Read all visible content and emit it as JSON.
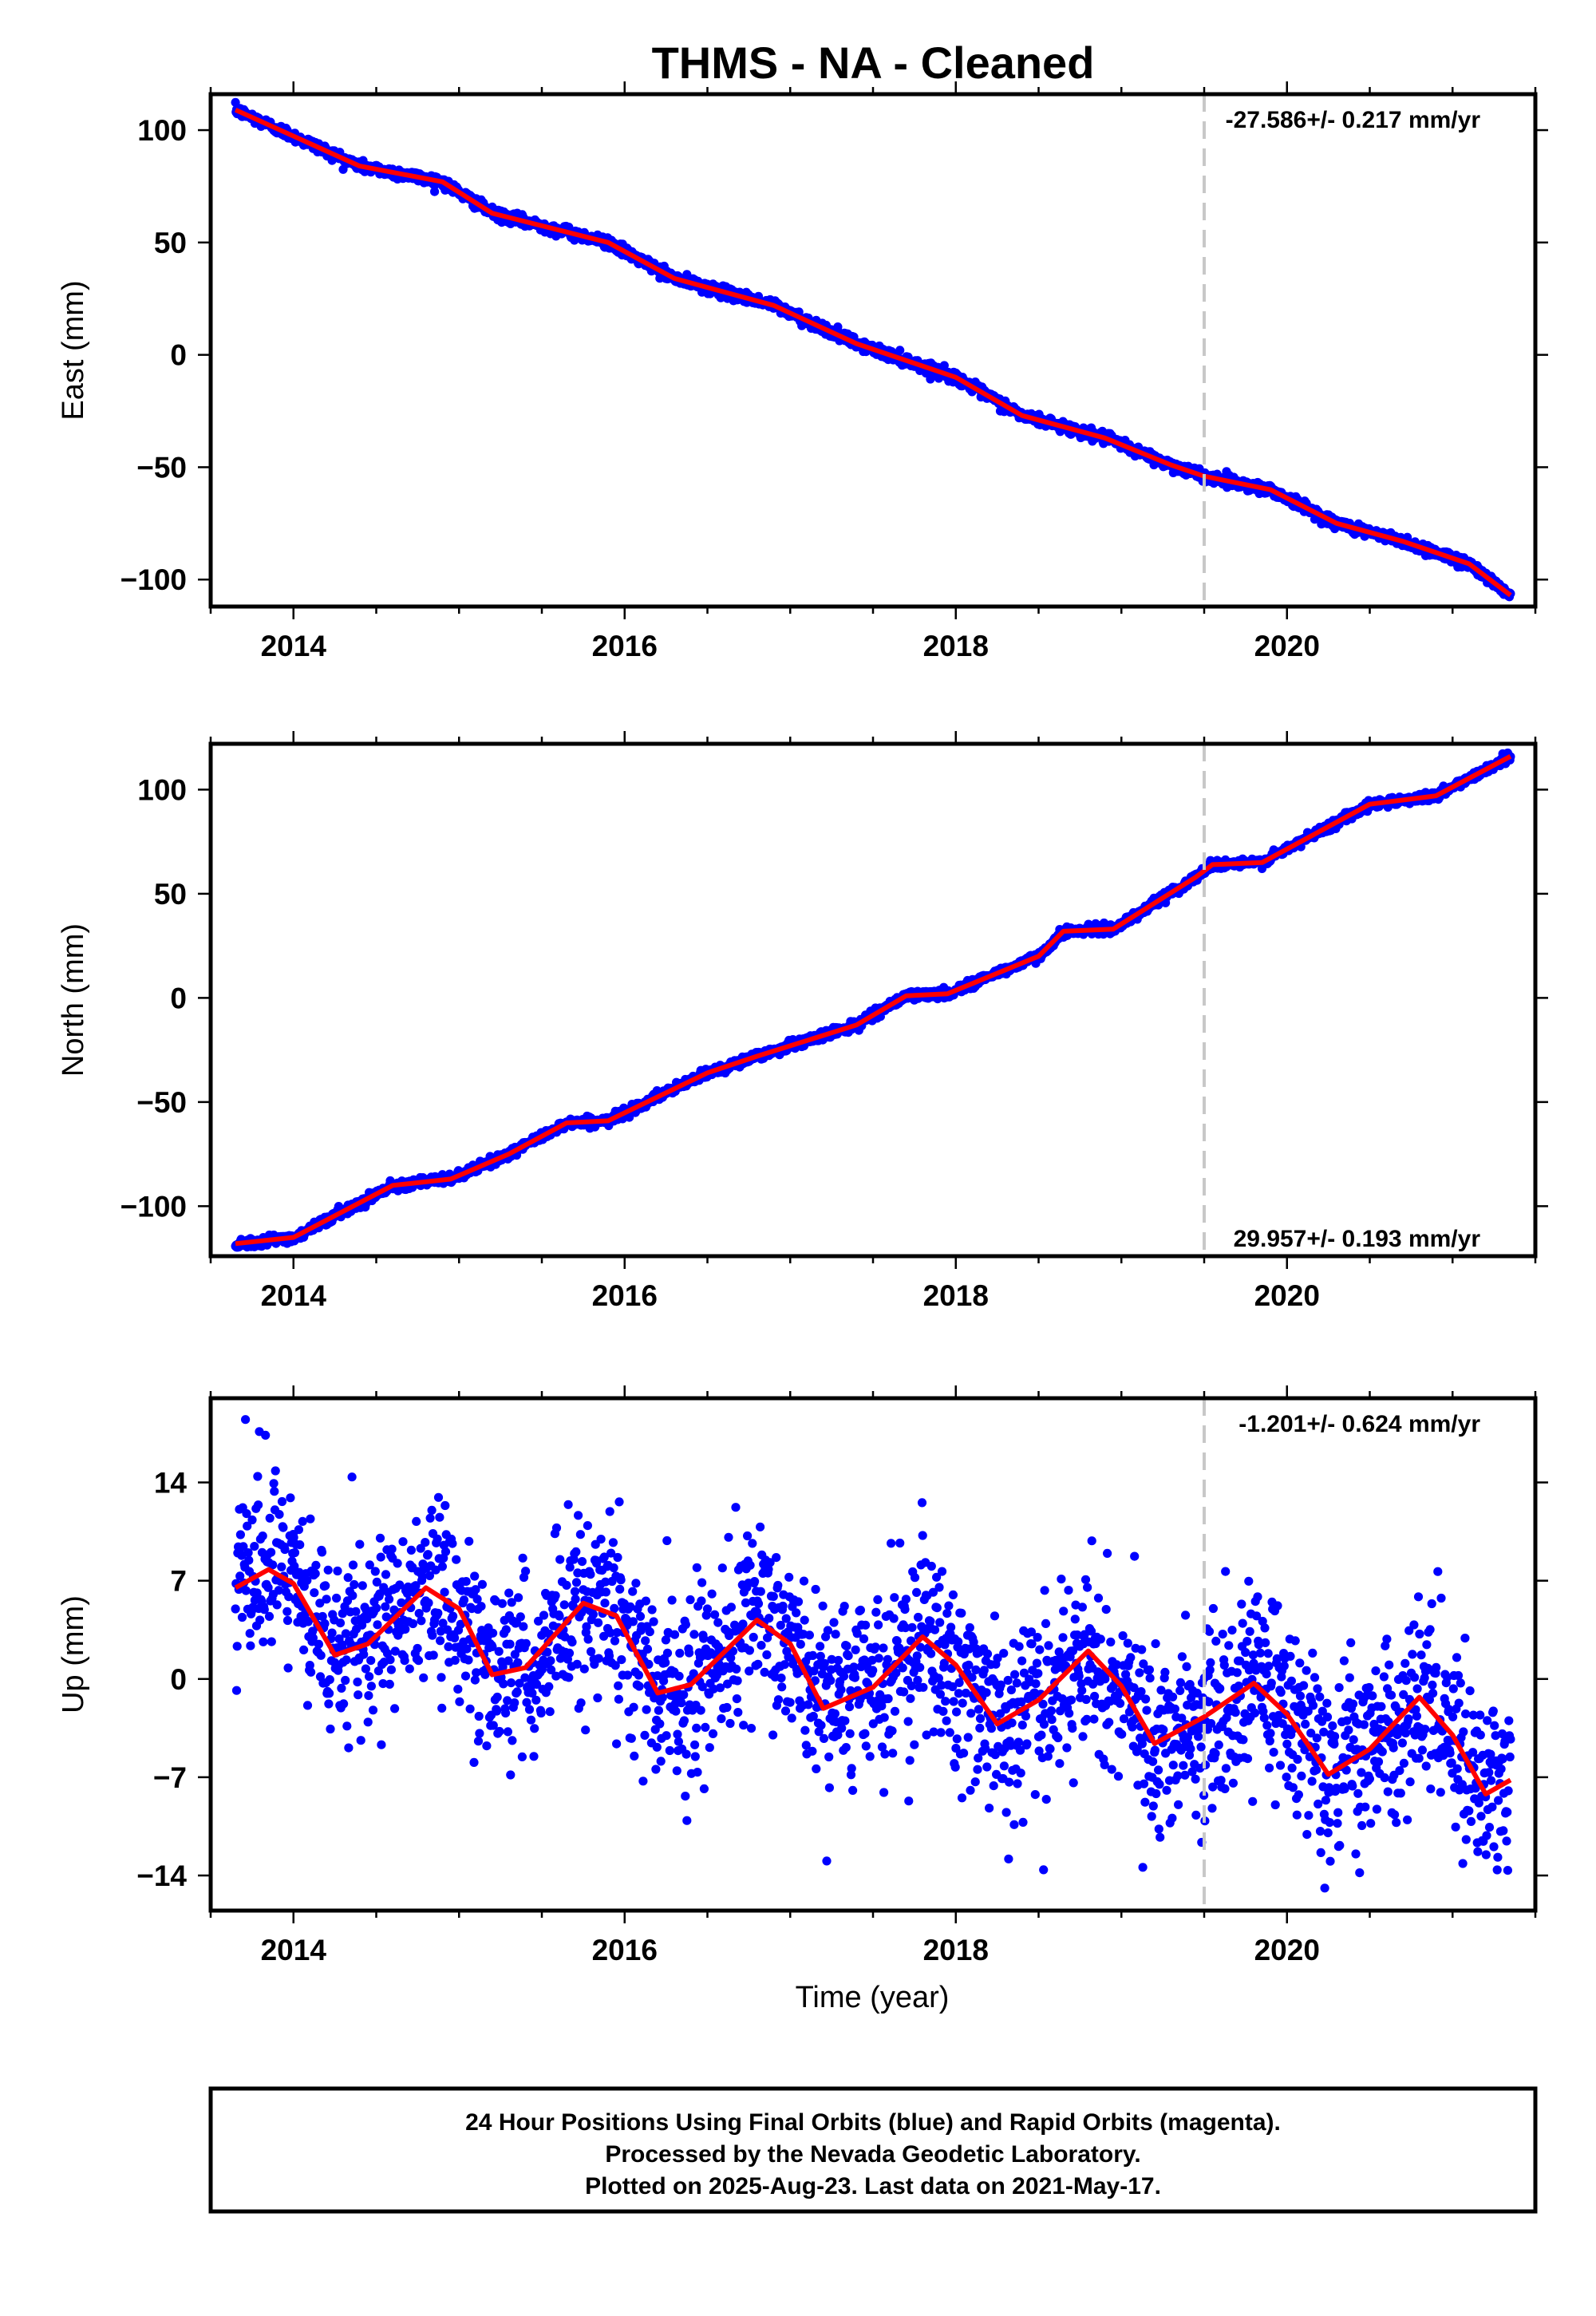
{
  "title": "THMS  - NA - Cleaned",
  "xlabel": "Time (year)",
  "colors": {
    "points": "#0000ff",
    "fit": "#ff0000",
    "break_line": "#c8c8c8",
    "frame": "#000000"
  },
  "footer": {
    "line1": "24 Hour Positions Using Final Orbits (blue) and Rapid Orbits (magenta).",
    "line2": "Processed by the Nevada Geodetic Laboratory.",
    "line3": "Plotted on 2025-Aug-23. Last data on 2021-May-17."
  },
  "chart_data": [
    {
      "type": "scatter",
      "ylabel": "East (mm)",
      "rate_label": "-27.586+/- 0.217 mm/yr",
      "xlim": [
        2013.5,
        2021.5
      ],
      "ylim": [
        -112,
        116
      ],
      "xticks": [
        2014,
        2016,
        2018,
        2020
      ],
      "xtick_labels": [
        "2014",
        "2016",
        "2018",
        "2020"
      ],
      "yticks": [
        100,
        50,
        0,
        -50,
        -100
      ],
      "ytick_labels": [
        "100",
        "50",
        "0",
        "−50",
        "−100"
      ],
      "break_x": 2019.5,
      "trend": {
        "x0": 2013.65,
        "y0": 109,
        "slope": -27.586
      },
      "seasonal": {
        "amplitude": 2.0,
        "phase": 0.3,
        "noise": 1.2
      },
      "fit_points": [
        [
          2013.65,
          109
        ],
        [
          2014.4,
          84
        ],
        [
          2014.9,
          77
        ],
        [
          2015.2,
          63
        ],
        [
          2015.9,
          50
        ],
        [
          2016.3,
          34
        ],
        [
          2016.9,
          22
        ],
        [
          2017.4,
          5
        ],
        [
          2018.0,
          -10
        ],
        [
          2018.4,
          -27
        ],
        [
          2018.9,
          -37
        ],
        [
          2019.3,
          -49
        ],
        [
          2019.5,
          -54
        ],
        [
          2019.9,
          -60
        ],
        [
          2020.3,
          -75
        ],
        [
          2020.7,
          -83
        ],
        [
          2021.1,
          -93
        ],
        [
          2021.35,
          -107
        ]
      ]
    },
    {
      "type": "scatter",
      "ylabel": "North (mm)",
      "rate_label": "29.957+/- 0.193 mm/yr",
      "xlim": [
        2013.5,
        2021.5
      ],
      "ylim": [
        -124,
        122
      ],
      "xticks": [
        2014,
        2016,
        2018,
        2020
      ],
      "xtick_labels": [
        "2014",
        "2016",
        "2018",
        "2020"
      ],
      "yticks": [
        100,
        50,
        0,
        -50,
        -100
      ],
      "ytick_labels": [
        "100",
        "50",
        "0",
        "−50",
        "−100"
      ],
      "break_x": 2019.5,
      "trend": {
        "x0": 2013.65,
        "y0": -118,
        "slope": 29.957
      },
      "seasonal": {
        "amplitude": 2.5,
        "phase": 0.1,
        "noise": 1.1
      },
      "fit_points": [
        [
          2013.65,
          -118
        ],
        [
          2014.0,
          -115
        ],
        [
          2014.6,
          -90
        ],
        [
          2014.95,
          -87
        ],
        [
          2015.3,
          -75
        ],
        [
          2015.65,
          -60
        ],
        [
          2015.9,
          -59
        ],
        [
          2016.5,
          -36
        ],
        [
          2016.8,
          -28
        ],
        [
          2017.4,
          -13
        ],
        [
          2017.7,
          1
        ],
        [
          2017.95,
          2
        ],
        [
          2018.5,
          20
        ],
        [
          2018.65,
          32
        ],
        [
          2018.95,
          33
        ],
        [
          2019.45,
          58
        ],
        [
          2019.55,
          64
        ],
        [
          2019.85,
          65
        ],
        [
          2020.5,
          93
        ],
        [
          2020.9,
          97
        ],
        [
          2021.35,
          116
        ]
      ]
    },
    {
      "type": "scatter",
      "ylabel": "Up (mm)",
      "rate_label": "-1.201+/- 0.624 mm/yr",
      "xlim": [
        2013.5,
        2021.5
      ],
      "ylim": [
        -16.5,
        20
      ],
      "xticks": [
        2014,
        2016,
        2018,
        2020
      ],
      "xtick_labels": [
        "2014",
        "2016",
        "2018",
        "2020"
      ],
      "yticks": [
        14,
        7,
        0,
        -7,
        -14
      ],
      "ytick_labels": [
        "14",
        "7",
        "0",
        "−7",
        "−14"
      ],
      "break_x": 2019.5,
      "trend": {
        "x0": 2013.65,
        "y0": 4,
        "slope": -1.201
      },
      "seasonal": {
        "amplitude": 3.2,
        "phase": 0.55,
        "noise": 3.2
      },
      "fit_points": [
        [
          2013.65,
          6.5
        ],
        [
          2013.85,
          7.8
        ],
        [
          2014.0,
          6.8
        ],
        [
          2014.25,
          1.7
        ],
        [
          2014.45,
          2.5
        ],
        [
          2014.8,
          6.5
        ],
        [
          2015.0,
          5.0
        ],
        [
          2015.2,
          0.3
        ],
        [
          2015.4,
          0.8
        ],
        [
          2015.75,
          5.4
        ],
        [
          2015.95,
          4.5
        ],
        [
          2016.2,
          -1.0
        ],
        [
          2016.4,
          -0.4
        ],
        [
          2016.8,
          4.2
        ],
        [
          2017.0,
          2.5
        ],
        [
          2017.2,
          -2.1
        ],
        [
          2017.5,
          -0.6
        ],
        [
          2017.8,
          3.0
        ],
        [
          2018.0,
          1.0
        ],
        [
          2018.25,
          -3.2
        ],
        [
          2018.5,
          -1.5
        ],
        [
          2018.8,
          2.0
        ],
        [
          2019.0,
          -0.5
        ],
        [
          2019.2,
          -4.6
        ],
        [
          2019.5,
          -2.7
        ],
        [
          2019.8,
          -0.3
        ],
        [
          2020.0,
          -2.5
        ],
        [
          2020.25,
          -6.8
        ],
        [
          2020.5,
          -5.0
        ],
        [
          2020.8,
          -1.3
        ],
        [
          2021.0,
          -4.0
        ],
        [
          2021.2,
          -8.2
        ],
        [
          2021.35,
          -7.2
        ]
      ]
    }
  ]
}
